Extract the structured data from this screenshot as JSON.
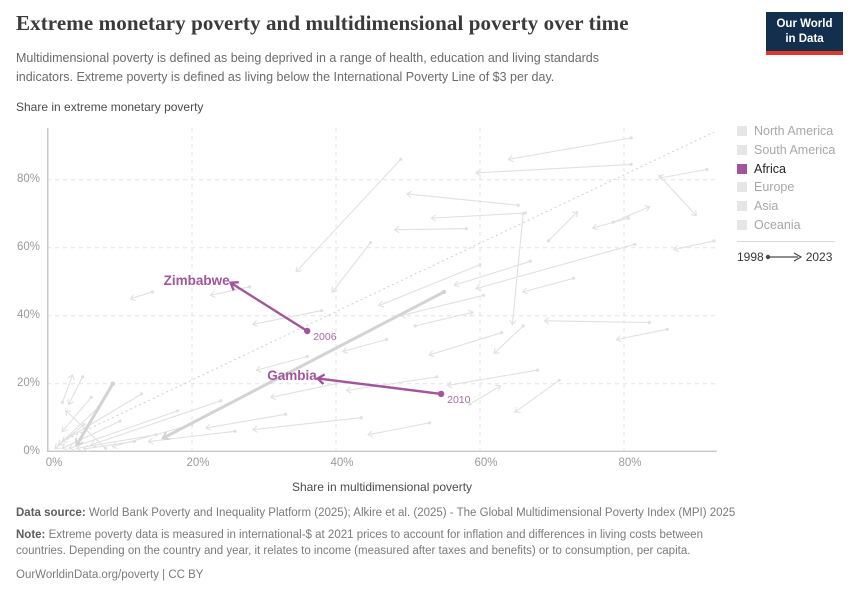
{
  "header": {
    "title": "Extreme monetary poverty and multidimensional poverty over time",
    "subtitle": "Multidimensional poverty is defined as being deprived in a range of health, education and living standards\nindicators. Extreme poverty is defined as living below the International Poverty Line of $3 per day.",
    "logo": {
      "line1": "Our World",
      "line2": "in Data"
    }
  },
  "brand": {
    "logo_bg": "#12304e",
    "logo_bar": "#e0362c",
    "africa_purple": "#a2559c",
    "muted_swatch": "#e6e6e6",
    "gray_line": "#e1e1e1",
    "gray_line_thick": "#d3d3d3"
  },
  "chart": {
    "y_axis_title": "Share in extreme monetary poverty",
    "x_axis_title": "Share in multidimensional poverty",
    "ticks": {
      "x": [
        {
          "v": 0,
          "label": "0%"
        },
        {
          "v": 20,
          "label": "20%"
        },
        {
          "v": 40,
          "label": "40%"
        },
        {
          "v": 60,
          "label": "60%"
        },
        {
          "v": 80,
          "label": "80%"
        }
      ],
      "y": [
        {
          "v": 0,
          "label": "0%"
        },
        {
          "v": 20,
          "label": "20%"
        },
        {
          "v": 40,
          "label": "40%"
        },
        {
          "v": 60,
          "label": "60%"
        },
        {
          "v": 80,
          "label": "80%"
        }
      ]
    }
  },
  "legend": {
    "items": [
      {
        "label": "North America",
        "color": "#e6e6e6",
        "muted": true
      },
      {
        "label": "South America",
        "color": "#e6e6e6",
        "muted": true
      },
      {
        "label": "Africa",
        "color": "#a2559c",
        "muted": false
      },
      {
        "label": "Europe",
        "color": "#e6e6e6",
        "muted": true
      },
      {
        "label": "Asia",
        "color": "#e6e6e6",
        "muted": true
      },
      {
        "label": "Oceania",
        "color": "#e6e6e6",
        "muted": true
      }
    ],
    "time": {
      "start": "1998",
      "end": "2023"
    }
  },
  "chart_data": {
    "type": "connected-scatter",
    "title": "Extreme monetary poverty and multidimensional poverty over time",
    "xlabel": "Share in multidimensional poverty",
    "ylabel": "Share in extreme monetary poverty",
    "xlim": [
      0,
      93
    ],
    "ylim": [
      0,
      95
    ],
    "grid": "dashed",
    "units": "%",
    "time_range": {
      "start": 1998,
      "end": 2023
    },
    "highlighted": [
      {
        "name": "Zimbabwe",
        "continent": "Africa",
        "color": "#a2559c",
        "start": {
          "x": 36.0,
          "y": 35.5,
          "year_label": "2006"
        },
        "end": {
          "x": 25.5,
          "y": 49.5
        }
      },
      {
        "name": "Gambia",
        "continent": "Africa",
        "color": "#a2559c",
        "start": {
          "x": 54.6,
          "y": 17.0,
          "year_label": "2010"
        },
        "end": {
          "x": 37.6,
          "y": 21.5
        }
      }
    ],
    "reference_dotted_line": {
      "x1": 2,
      "y1": 3,
      "x2": 92.5,
      "y2": 94
    },
    "background_trajectories_thick": [
      [
        55,
        47,
        16,
        4
      ],
      [
        9,
        20,
        4,
        2
      ]
    ],
    "background_trajectories": [
      [
        81,
        92.3,
        64,
        86
      ],
      [
        91.5,
        83,
        85,
        80.5
      ],
      [
        81,
        84.5,
        59.5,
        82
      ],
      [
        65.3,
        72.5,
        49.9,
        75.8
      ],
      [
        66.3,
        70.2,
        53.3,
        68.7
      ],
      [
        69.5,
        62,
        73.5,
        70.5
      ],
      [
        80.6,
        68.7,
        75.7,
        65.8
      ],
      [
        58.1,
        65.6,
        48.2,
        65.3
      ],
      [
        49,
        86,
        34.5,
        53
      ],
      [
        81.5,
        61,
        59.5,
        48
      ],
      [
        85,
        81,
        90,
        69.5
      ],
      [
        78.5,
        67.5,
        83.5,
        72
      ],
      [
        67,
        56,
        56.5,
        49
      ],
      [
        66,
        70,
        64.5,
        37.5
      ],
      [
        60.5,
        46,
        49,
        40
      ],
      [
        60,
        55,
        46,
        43
      ],
      [
        63,
        35,
        53,
        28.5
      ],
      [
        51,
        37,
        59,
        41
      ],
      [
        47,
        33,
        41,
        29.5
      ],
      [
        54,
        22,
        41.5,
        18
      ],
      [
        68,
        24,
        55.5,
        19.5
      ],
      [
        71,
        21,
        64.9,
        11.7
      ],
      [
        83.5,
        38,
        69,
        38.5
      ],
      [
        66,
        37,
        62,
        29
      ],
      [
        58.6,
        14,
        62.8,
        19.3
      ],
      [
        53,
        8.5,
        44.5,
        5
      ],
      [
        43.5,
        10,
        28.5,
        6.5
      ],
      [
        38,
        41.5,
        28.5,
        37.5
      ],
      [
        28,
        48.5,
        22.6,
        46
      ],
      [
        14.5,
        47,
        11.5,
        45
      ],
      [
        44.8,
        61.5,
        39.5,
        47
      ],
      [
        24,
        15,
        6,
        2
      ],
      [
        18,
        12,
        3,
        1
      ],
      [
        13,
        17,
        2,
        3
      ],
      [
        20,
        8,
        9,
        1.5
      ],
      [
        15,
        5,
        4,
        1
      ],
      [
        10,
        9,
        2,
        1
      ],
      [
        7,
        13,
        1.5,
        2
      ],
      [
        5,
        8,
        1,
        1
      ],
      [
        12,
        3,
        5,
        0.8
      ],
      [
        26,
        6,
        14,
        3
      ],
      [
        33,
        11,
        22,
        7
      ],
      [
        6,
        16,
        2,
        6
      ],
      [
        4.8,
        22,
        2.9,
        14
      ],
      [
        2,
        14.5,
        3.4,
        22.5
      ],
      [
        8,
        1,
        2.5,
        12
      ],
      [
        92.5,
        62,
        87,
        59.5
      ],
      [
        86,
        36,
        79,
        33
      ],
      [
        40,
        20,
        31,
        16
      ],
      [
        36,
        28,
        29,
        24
      ],
      [
        73,
        51,
        66,
        47
      ]
    ]
  },
  "footer": {
    "data_source_label": "Data source:",
    "data_source_text": " World Bank Poverty and Inequality Platform (2025); Alkire et al. (2025) - The Global Multidimensional Poverty Index (MPI) 2025",
    "note_label": "Note:",
    "note_text": " Extreme poverty data is measured in international-$ at 2021 prices to account for inflation and differences in living costs between\ncountries. Depending on the country and year, it relates to income (measured after taxes and benefits) or to consumption, per capita.",
    "license": "OurWorldinData.org/poverty | CC BY"
  }
}
